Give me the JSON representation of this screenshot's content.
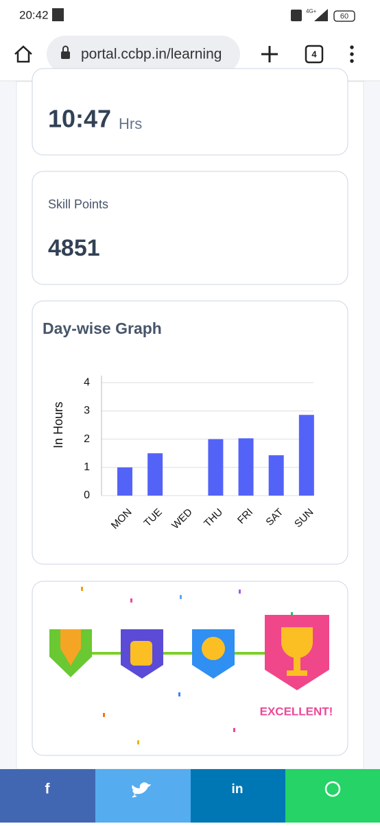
{
  "status_bar": {
    "time": "20:42",
    "network": "4G+",
    "battery": "60"
  },
  "browser": {
    "url": "portal.ccbp.in/learning",
    "tab_count": "4"
  },
  "time_card": {
    "value": "10:47",
    "unit": "Hrs"
  },
  "skill_card": {
    "label": "Skill Points",
    "value": "4851"
  },
  "chart_data": {
    "type": "bar",
    "title": "Day-wise Graph",
    "y_label": "In Hours",
    "categories": [
      "MON",
      "TUE",
      "WED",
      "THU",
      "FRI",
      "SAT",
      "SUN"
    ],
    "values": [
      1.0,
      1.5,
      0,
      2.0,
      2.03,
      1.43,
      2.86
    ],
    "color": "#5463f7",
    "ylim": [
      0,
      4.25
    ],
    "yticks": [
      0,
      1,
      2,
      3,
      4
    ],
    "grid": true
  },
  "badge": {
    "label": "EXCELLENT!"
  },
  "share": {
    "facebook": "f",
    "linkedin": "in"
  }
}
